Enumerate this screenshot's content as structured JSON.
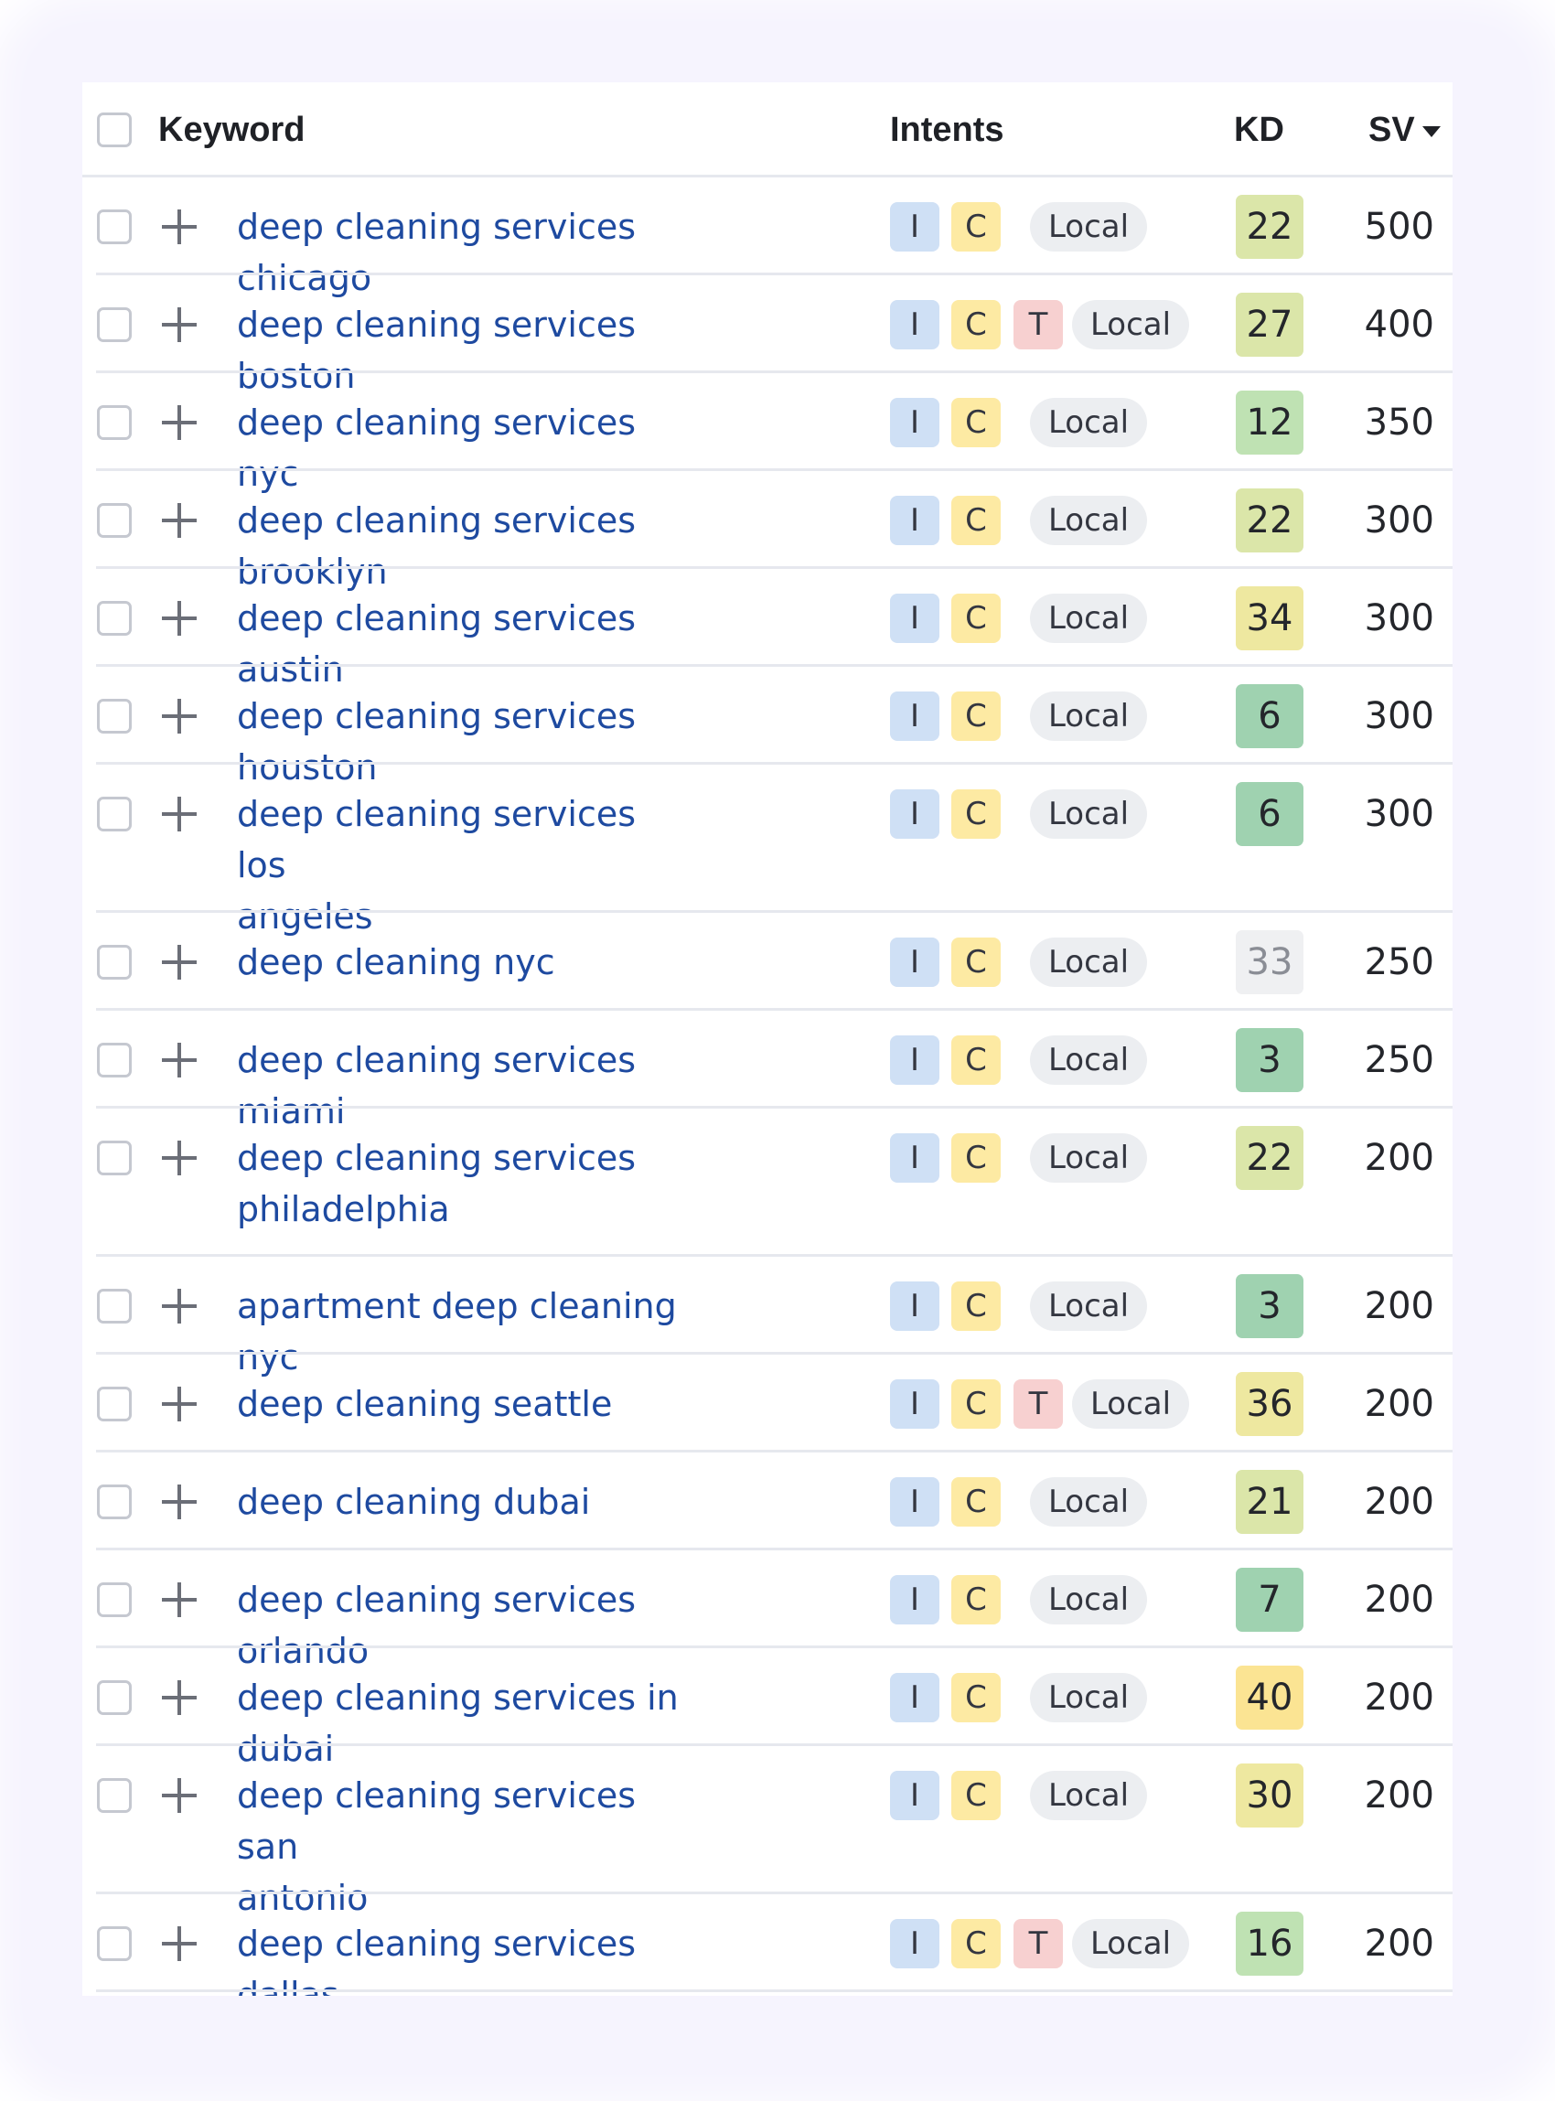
{
  "header": {
    "keyword": "Keyword",
    "intents": "Intents",
    "kd": "KD",
    "sv": "SV"
  },
  "colors": {
    "keyword_link": "#1e4aa0",
    "intent_i": "#cfe0f5",
    "intent_c": "#fdeaa3",
    "intent_t": "#f7d0d0",
    "local": "#eceef1",
    "kd_very_easy": "#9fd2b0",
    "kd_easy": "#bfe2b3",
    "kd_possible": "#dbe6a9",
    "kd_medium": "#eee8a0",
    "kd_difficult": "#fbe493",
    "kd_na": "#eff0f2"
  },
  "rows": [
    {
      "keyword": "deep cleaning services chicago",
      "line1": "deep cleaning services chicago",
      "line2": "",
      "intents": [
        "I",
        "C"
      ],
      "local": "Local",
      "kd": "22",
      "kd_level": "possible",
      "sv": "500"
    },
    {
      "keyword": "deep cleaning services boston",
      "line1": "deep cleaning services boston",
      "line2": "",
      "intents": [
        "I",
        "C",
        "T"
      ],
      "local": "Local",
      "kd": "27",
      "kd_level": "possible",
      "sv": "400"
    },
    {
      "keyword": "deep cleaning services nyc",
      "line1": "deep cleaning services nyc",
      "line2": "",
      "intents": [
        "I",
        "C"
      ],
      "local": "Local",
      "kd": "12",
      "kd_level": "easy",
      "sv": "350"
    },
    {
      "keyword": "deep cleaning services brooklyn",
      "line1": "deep cleaning services brooklyn",
      "line2": "",
      "intents": [
        "I",
        "C"
      ],
      "local": "Local",
      "kd": "22",
      "kd_level": "possible",
      "sv": "300"
    },
    {
      "keyword": "deep cleaning services austin",
      "line1": "deep cleaning services austin",
      "line2": "",
      "intents": [
        "I",
        "C"
      ],
      "local": "Local",
      "kd": "34",
      "kd_level": "medium",
      "sv": "300"
    },
    {
      "keyword": "deep cleaning services houston",
      "line1": "deep cleaning services houston",
      "line2": "",
      "intents": [
        "I",
        "C"
      ],
      "local": "Local",
      "kd": "6",
      "kd_level": "very_easy",
      "sv": "300"
    },
    {
      "keyword": "deep cleaning services los angeles",
      "line1": "deep cleaning services los",
      "line2": "angeles",
      "intents": [
        "I",
        "C"
      ],
      "local": "Local",
      "kd": "6",
      "kd_level": "very_easy",
      "sv": "300"
    },
    {
      "keyword": "deep cleaning nyc",
      "line1": "deep cleaning nyc",
      "line2": "",
      "intents": [
        "I",
        "C"
      ],
      "local": "Local",
      "kd": "33",
      "kd_level": "na",
      "sv": "250"
    },
    {
      "keyword": "deep cleaning services miami",
      "line1": "deep cleaning services miami",
      "line2": "",
      "intents": [
        "I",
        "C"
      ],
      "local": "Local",
      "kd": "3",
      "kd_level": "very_easy",
      "sv": "250"
    },
    {
      "keyword": "deep cleaning services philadelphia",
      "line1": "deep cleaning services",
      "line2": "philadelphia",
      "intents": [
        "I",
        "C"
      ],
      "local": "Local",
      "kd": "22",
      "kd_level": "possible",
      "sv": "200"
    },
    {
      "keyword": "apartment deep cleaning nyc",
      "line1": "apartment deep cleaning nyc",
      "line2": "",
      "intents": [
        "I",
        "C"
      ],
      "local": "Local",
      "kd": "3",
      "kd_level": "very_easy",
      "sv": "200"
    },
    {
      "keyword": "deep cleaning seattle",
      "line1": "deep cleaning seattle",
      "line2": "",
      "intents": [
        "I",
        "C",
        "T"
      ],
      "local": "Local",
      "kd": "36",
      "kd_level": "medium",
      "sv": "200"
    },
    {
      "keyword": "deep cleaning dubai",
      "line1": "deep cleaning dubai",
      "line2": "",
      "intents": [
        "I",
        "C"
      ],
      "local": "Local",
      "kd": "21",
      "kd_level": "possible",
      "sv": "200"
    },
    {
      "keyword": "deep cleaning services orlando",
      "line1": "deep cleaning services orlando",
      "line2": "",
      "intents": [
        "I",
        "C"
      ],
      "local": "Local",
      "kd": "7",
      "kd_level": "very_easy",
      "sv": "200"
    },
    {
      "keyword": "deep cleaning services in dubai",
      "line1": "deep cleaning services in dubai",
      "line2": "",
      "intents": [
        "I",
        "C"
      ],
      "local": "Local",
      "kd": "40",
      "kd_level": "difficult",
      "sv": "200"
    },
    {
      "keyword": "deep cleaning services san antonio",
      "line1": "deep cleaning services san",
      "line2": "antonio",
      "intents": [
        "I",
        "C"
      ],
      "local": "Local",
      "kd": "30",
      "kd_level": "medium",
      "sv": "200"
    },
    {
      "keyword": "deep cleaning services dallas",
      "line1": "deep cleaning services dallas",
      "line2": "",
      "intents": [
        "I",
        "C",
        "T"
      ],
      "local": "Local",
      "kd": "16",
      "kd_level": "easy",
      "sv": "200"
    }
  ]
}
